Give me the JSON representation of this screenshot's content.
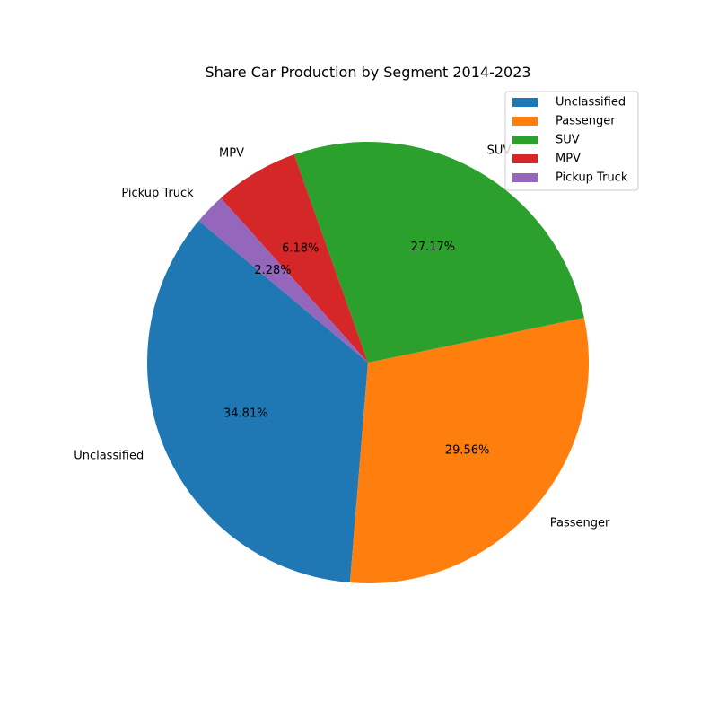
{
  "chart_data": {
    "type": "pie",
    "title": "Share Car Production by Segment 2014-2023",
    "categories": [
      "Unclassified",
      "Passenger",
      "SUV",
      "MPV",
      "Pickup Truck"
    ],
    "values": [
      34.81,
      29.56,
      27.17,
      6.18,
      2.28
    ],
    "value_labels": [
      "34.81%",
      "29.56%",
      "27.17%",
      "6.18%",
      "2.28%"
    ],
    "colors": [
      "#1f77b4",
      "#ff7f0e",
      "#2ca02c",
      "#d62728",
      "#9467bd"
    ],
    "start_angle_deg": 140,
    "direction": "counterclockwise",
    "legend": {
      "placement": "top-right",
      "entries": [
        "Unclassified",
        "Passenger",
        "SUV",
        "MPV",
        "Pickup Truck"
      ]
    }
  }
}
